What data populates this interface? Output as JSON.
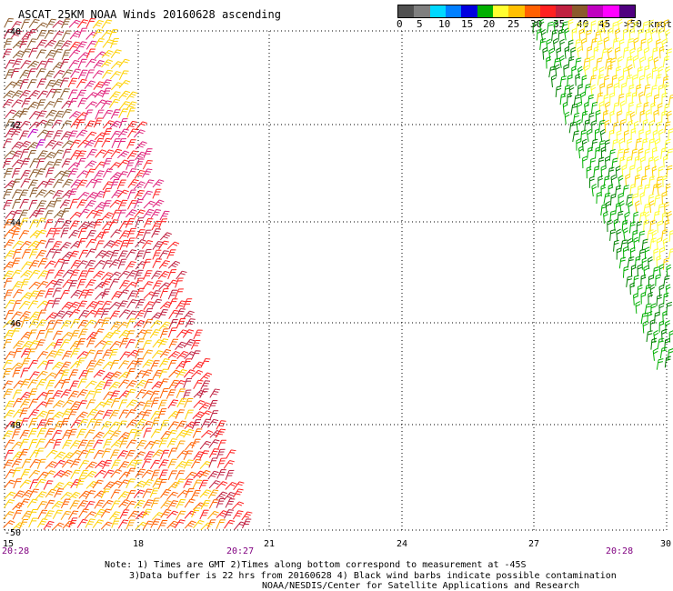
{
  "title": "ASCAT 25KM NOAA Winds 20160628 ascending",
  "legend": {
    "labels": [
      "0",
      "5",
      "10",
      "15",
      "20",
      "25",
      "30",
      "35",
      "40",
      "45",
      ">50 knots"
    ],
    "colors": [
      "#505050",
      "#7f7f7f",
      "#00d8ff",
      "#007fff",
      "#0000e0",
      "#00b000",
      "#ffff30",
      "#ffc000",
      "#ff6000",
      "#ff2020",
      "#c02040",
      "#8b5a2b",
      "#c000c0",
      "#ff00ff",
      "#500080"
    ]
  },
  "latitudes": [
    "-40",
    "-42",
    "-44",
    "-46",
    "-48",
    "-50"
  ],
  "longitudes": [
    "15",
    "18",
    "21",
    "24",
    "27",
    "30"
  ],
  "times": [
    "20:28",
    "20:27",
    "20:28"
  ],
  "notes": [
    "Note: 1) Times are GMT 2)Times along bottom correspond to measurement at -45S",
    "3)Data buffer is 22 hrs from 20160628 4) Black wind barbs indicate possible contamination",
    "NOAA/NESDIS/Center for Satellite Applications and Research"
  ]
}
